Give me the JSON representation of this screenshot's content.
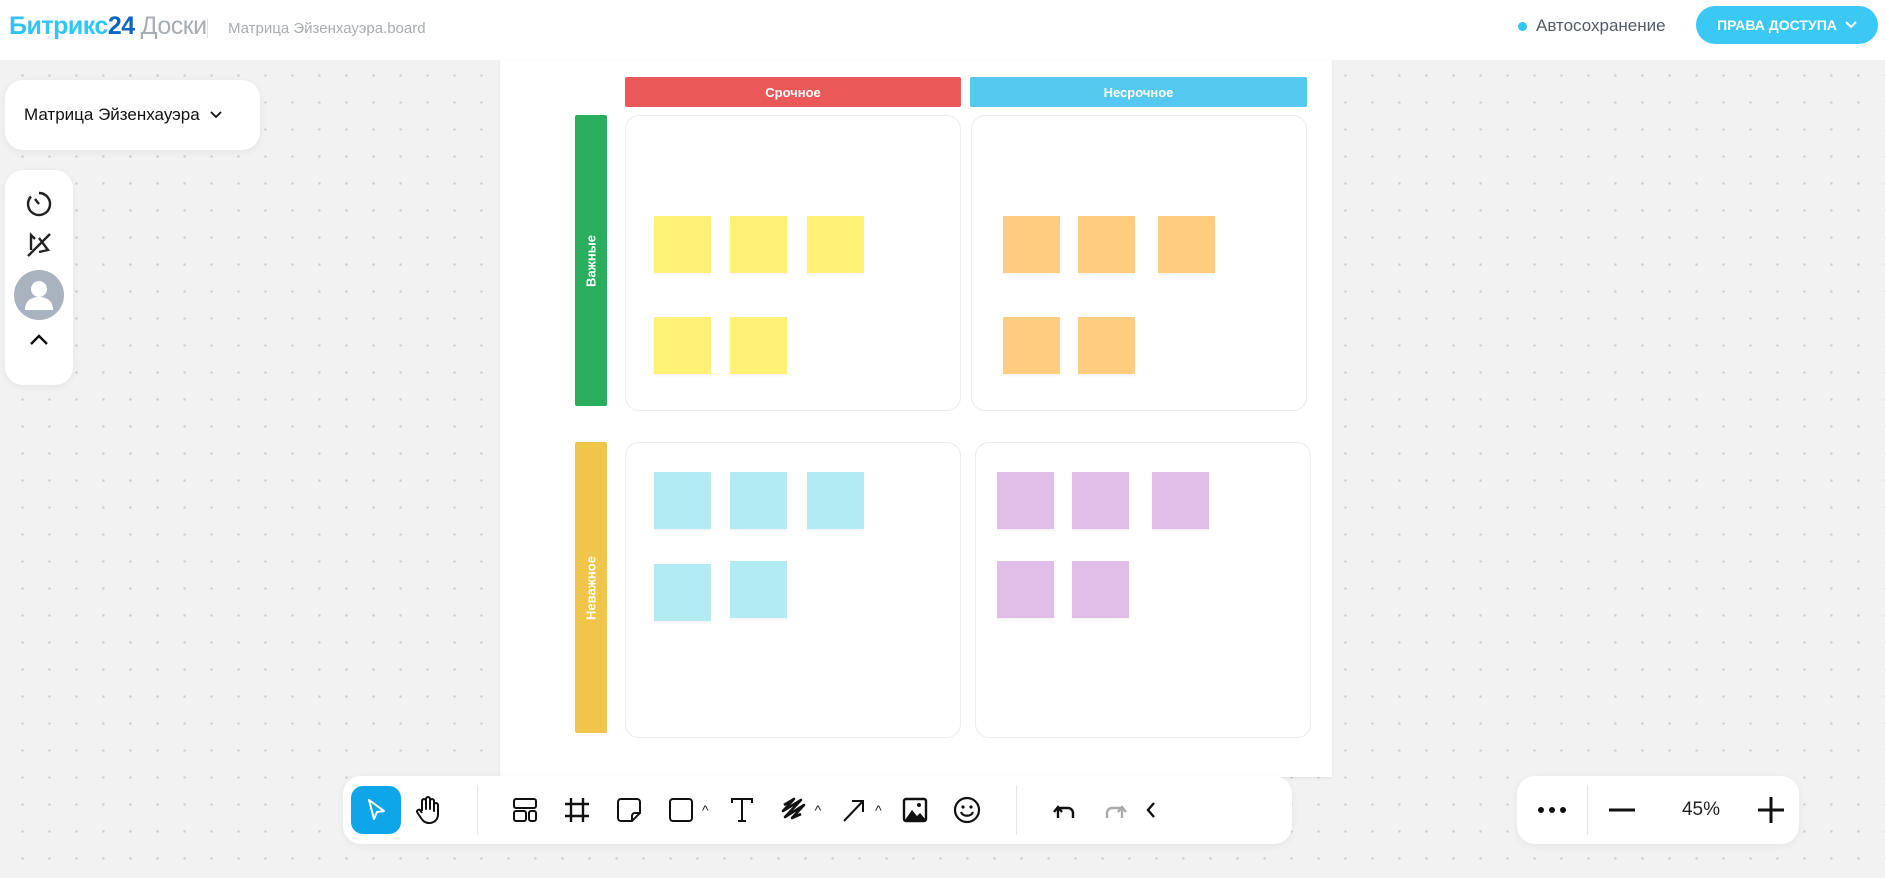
{
  "header": {
    "logo_brand": "Битрикс",
    "logo_number": "24",
    "logo_product": "Доски",
    "file_name": "Матрица Эйзенхауэра.board",
    "autosave_label": "Автосохранение",
    "access_button": "ПРАВА ДОСТУПА",
    "autosave_color": "#2fc6f6",
    "accent": "#3bc8f5"
  },
  "board_selector": {
    "label": "Матрица Эйзенхауэра"
  },
  "left_tools": [
    "timer-icon",
    "follow-off-icon",
    "avatar",
    "collapse-icon"
  ],
  "board": {
    "columns": [
      {
        "label": "Срочное",
        "color": "#ea5858"
      },
      {
        "label": "Несрочное",
        "color": "#55c8f0"
      }
    ],
    "rows": [
      {
        "label": "Важные",
        "color": "#28ae5c"
      },
      {
        "label": "Неважное",
        "color": "#f0c54a"
      }
    ],
    "quadrants": [
      {
        "name": "urgent-important",
        "sticky_color": "#fff176",
        "sticky_count": 5
      },
      {
        "name": "not-urgent-important",
        "sticky_color": "#ffcc80",
        "sticky_count": 5
      },
      {
        "name": "urgent-not-important",
        "sticky_color": "#b2ebf2",
        "sticky_count": 5
      },
      {
        "name": "not-urgent-not-important",
        "sticky_color": "#e1bee7",
        "sticky_count": 5
      }
    ]
  },
  "toolbar": {
    "tools": [
      "select",
      "hand",
      "templates",
      "frame",
      "sticky-note",
      "shape",
      "text",
      "pen",
      "arrow",
      "image",
      "emoji",
      "undo",
      "redo",
      "collapse"
    ],
    "active": "select"
  },
  "zoom": {
    "value": "45%"
  }
}
